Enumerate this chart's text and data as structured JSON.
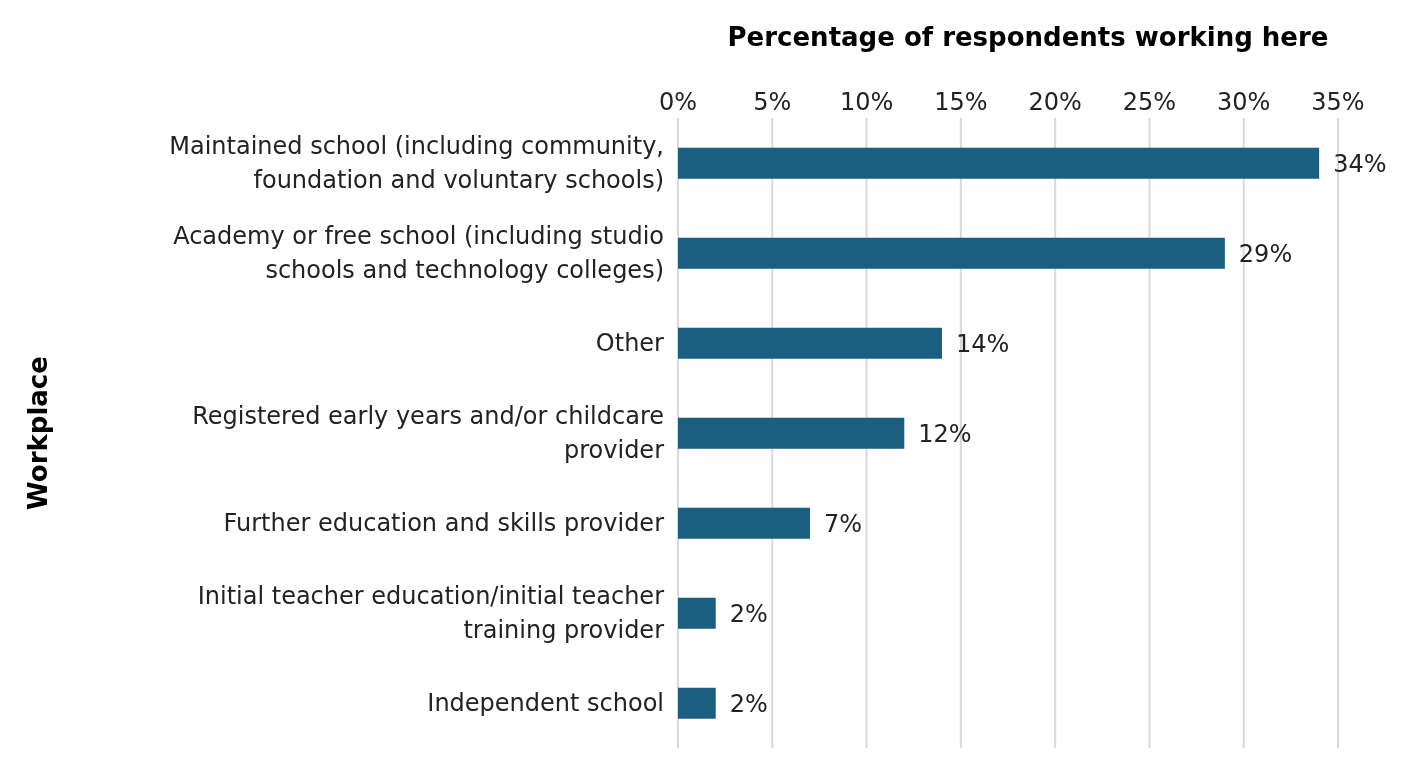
{
  "chart_data": {
    "type": "bar",
    "orientation": "horizontal",
    "xlabel": "Percentage of respondents working here",
    "ylabel": "Workplace",
    "categories": [
      "Maintained school (including community, foundation and voluntary schools)",
      "Academy or free school (including studio schools and technology colleges)",
      "Other",
      "Registered early years and/or childcare provider",
      "Further education and skills provider",
      "Initial teacher education/initial teacher training provider",
      "Independent school"
    ],
    "values": [
      34,
      29,
      14,
      12,
      7,
      2,
      2
    ],
    "value_labels": [
      "34%",
      "29%",
      "14%",
      "12%",
      "7%",
      "2%",
      "2%"
    ],
    "color": "#1a5f80",
    "xlim": [
      0,
      35
    ],
    "xticks": [
      {
        "value": 0,
        "label": "0%"
      },
      {
        "value": 5,
        "label": "5%"
      },
      {
        "value": 10,
        "label": "10%"
      },
      {
        "value": 15,
        "label": "15%"
      },
      {
        "value": 20,
        "label": "20%"
      },
      {
        "value": 25,
        "label": "25%"
      },
      {
        "value": 30,
        "label": "30%"
      },
      {
        "value": 35,
        "label": "35%"
      }
    ],
    "grid": "x"
  }
}
